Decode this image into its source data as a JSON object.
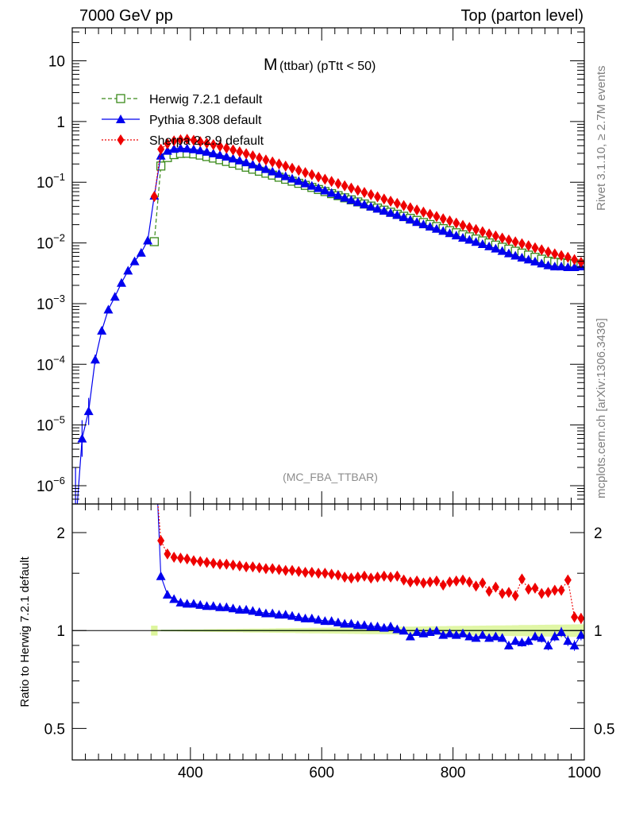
{
  "header": {
    "left": "7000 GeV pp",
    "right": "Top (parton level)"
  },
  "side_labels": {
    "top": "Rivet 3.1.10, ≥ 2.7M events",
    "bottom": "mcplots.cern.ch [arXiv:1306.3436]"
  },
  "chart_data": {
    "type": "line",
    "title": "M (ttbar) (pTtt < 50)",
    "title_main": "M",
    "title_sub": "(ttbar) (pTtt < 50)",
    "analysis_tag": "(MC_FBA_TTBAR)",
    "xlim": [
      220,
      1000
    ],
    "x_ticks": [
      400,
      600,
      800,
      1000
    ],
    "x_tick_labels": [
      "400",
      "600",
      "800",
      "1000"
    ],
    "main": {
      "yscale": "log",
      "ylim": [
        5e-07,
        35
      ],
      "y_ticks": [
        1e-06,
        1e-05,
        0.0001,
        0.001,
        0.01,
        0.1,
        1,
        10
      ],
      "y_tick_labels": [
        {
          "base": "10",
          "exp": "−6"
        },
        {
          "base": "10",
          "exp": "−5"
        },
        {
          "base": "10",
          "exp": "−4"
        },
        {
          "base": "10",
          "exp": "−3"
        },
        {
          "base": "10",
          "exp": "−2"
        },
        {
          "base": "10",
          "exp": "−1"
        },
        {
          "base": "1",
          "exp": ""
        },
        {
          "base": "10",
          "exp": ""
        }
      ]
    },
    "ratio": {
      "yscale": "log",
      "ylim": [
        0.4,
        2.45
      ],
      "y_ticks": [
        0.5,
        1,
        2
      ],
      "y_tick_labels": [
        "0.5",
        "1",
        "2"
      ],
      "ylabel": "Ratio to Herwig 7.2.1 default",
      "reference": 1
    },
    "legend": {
      "position": "top-left",
      "entries": [
        "Herwig 7.2.1 default",
        "Pythia 8.308 default",
        "Sherpa 2.2.9 default"
      ]
    },
    "series": [
      {
        "name": "Herwig 7.2.1 default",
        "color": "#3a8a1a",
        "marker": "open-square",
        "dash": "5,3",
        "x": [
          345,
          355,
          365,
          375,
          385,
          395,
          405,
          415,
          425,
          435,
          445,
          455,
          465,
          475,
          485,
          495,
          505,
          515,
          525,
          535,
          545,
          555,
          565,
          575,
          585,
          595,
          605,
          615,
          625,
          635,
          645,
          655,
          665,
          675,
          685,
          695,
          705,
          715,
          725,
          735,
          745,
          755,
          765,
          775,
          785,
          795,
          805,
          815,
          825,
          835,
          845,
          855,
          865,
          875,
          885,
          895,
          905,
          915,
          925,
          935,
          945,
          955,
          965,
          975,
          985,
          995
        ],
        "y": [
          0.0105,
          0.185,
          0.255,
          0.285,
          0.298,
          0.3,
          0.293,
          0.28,
          0.265,
          0.25,
          0.235,
          0.22,
          0.205,
          0.191,
          0.177,
          0.164,
          0.152,
          0.141,
          0.131,
          0.121,
          0.112,
          0.104,
          0.096,
          0.0888,
          0.0821,
          0.0759,
          0.0702,
          0.0649,
          0.06,
          0.0554,
          0.0512,
          0.0474,
          0.0438,
          0.0405,
          0.0375,
          0.0347,
          0.0321,
          0.0297,
          0.0275,
          0.0254,
          0.0235,
          0.0217,
          0.0201,
          0.0186,
          0.0172,
          0.0159,
          0.0147,
          0.0136,
          0.0126,
          0.0116,
          0.0108,
          0.01,
          0.0092,
          0.0085,
          0.0079,
          0.0073,
          0.0068,
          0.0063,
          0.0058,
          0.0054,
          0.005,
          0.0048,
          0.0047,
          0.0046,
          0.0045,
          0.0045
        ]
      },
      {
        "name": "Pythia 8.308 default",
        "color": "#0000ee",
        "marker": "filled-triangle",
        "dash": "",
        "x": [
          225,
          235,
          245,
          255,
          265,
          275,
          285,
          295,
          305,
          315,
          325,
          335,
          345,
          355,
          365,
          375,
          385,
          395,
          405,
          415,
          425,
          435,
          445,
          455,
          465,
          475,
          485,
          495,
          505,
          515,
          525,
          535,
          545,
          555,
          565,
          575,
          585,
          595,
          605,
          615,
          625,
          635,
          645,
          655,
          665,
          675,
          685,
          695,
          705,
          715,
          725,
          735,
          745,
          755,
          765,
          775,
          785,
          795,
          805,
          815,
          825,
          835,
          845,
          855,
          865,
          875,
          885,
          895,
          905,
          915,
          925,
          935,
          945,
          955,
          965,
          975,
          985,
          995
        ],
        "y": [
          2e-07,
          6e-06,
          1.7e-05,
          0.00012,
          0.00036,
          0.0008,
          0.0013,
          0.0022,
          0.0035,
          0.005,
          0.0069,
          0.011,
          0.06,
          0.275,
          0.33,
          0.355,
          0.365,
          0.36,
          0.35,
          0.335,
          0.318,
          0.3,
          0.282,
          0.264,
          0.246,
          0.229,
          0.213,
          0.197,
          0.18,
          0.165,
          0.151,
          0.138,
          0.126,
          0.115,
          0.105,
          0.096,
          0.0878,
          0.0803,
          0.0733,
          0.0669,
          0.061,
          0.0558,
          0.0512,
          0.047,
          0.0432,
          0.0397,
          0.0367,
          0.0339,
          0.0313,
          0.0289,
          0.0266,
          0.0242,
          0.0221,
          0.0203,
          0.0186,
          0.0171,
          0.0158,
          0.0145,
          0.0133,
          0.0122,
          0.0113,
          0.0104,
          0.00958,
          0.00883,
          0.0081,
          0.0074,
          0.00675,
          0.0062,
          0.00575,
          0.00535,
          0.00495,
          0.0046,
          0.0043,
          0.0041,
          0.0041,
          0.004,
          0.004,
          0.0041
        ]
      },
      {
        "name": "Sherpa 2.2.9 default",
        "color": "#ee0000",
        "marker": "filled-diamond",
        "dash": "2,2",
        "x": [
          345,
          355,
          365,
          375,
          385,
          395,
          405,
          415,
          425,
          435,
          445,
          455,
          465,
          475,
          485,
          495,
          505,
          515,
          525,
          535,
          545,
          555,
          565,
          575,
          585,
          595,
          605,
          615,
          625,
          635,
          645,
          655,
          665,
          675,
          685,
          695,
          705,
          715,
          725,
          735,
          745,
          755,
          765,
          775,
          785,
          795,
          805,
          815,
          825,
          835,
          845,
          855,
          865,
          875,
          885,
          895,
          905,
          915,
          925,
          935,
          945,
          955,
          965,
          975,
          985,
          995
        ],
        "y": [
          0.058,
          0.35,
          0.43,
          0.48,
          0.5,
          0.51,
          0.49,
          0.465,
          0.44,
          0.415,
          0.39,
          0.365,
          0.34,
          0.317,
          0.295,
          0.273,
          0.252,
          0.233,
          0.216,
          0.2,
          0.184,
          0.17,
          0.157,
          0.144,
          0.133,
          0.122,
          0.112,
          0.103,
          0.0948,
          0.0872,
          0.0802,
          0.0738,
          0.0679,
          0.0624,
          0.0574,
          0.0529,
          0.0487,
          0.0448,
          0.0412,
          0.038,
          0.0349,
          0.0321,
          0.0296,
          0.0272,
          0.025,
          0.0231,
          0.0212,
          0.0195,
          0.018,
          0.0166,
          0.0153,
          0.0141,
          0.013,
          0.012,
          0.0112,
          0.0104,
          0.0097,
          0.009,
          0.0083,
          0.0077,
          0.0071,
          0.0066,
          0.0062,
          0.0058,
          0.0053,
          0.0048
        ]
      }
    ],
    "ratio_series": [
      {
        "name": "Pythia 8.308 default",
        "x": [
          355,
          365,
          375,
          385,
          395,
          405,
          415,
          425,
          435,
          445,
          455,
          465,
          475,
          485,
          495,
          505,
          515,
          525,
          535,
          545,
          555,
          565,
          575,
          585,
          595,
          605,
          615,
          625,
          635,
          645,
          655,
          665,
          675,
          685,
          695,
          705,
          715,
          725,
          735,
          745,
          755,
          765,
          775,
          785,
          795,
          805,
          815,
          825,
          835,
          845,
          855,
          865,
          875,
          885,
          895,
          905,
          915,
          925,
          935,
          945,
          955,
          965,
          975,
          985,
          995
        ],
        "y": [
          1.47,
          1.29,
          1.25,
          1.22,
          1.21,
          1.21,
          1.2,
          1.19,
          1.19,
          1.18,
          1.18,
          1.17,
          1.16,
          1.16,
          1.15,
          1.14,
          1.13,
          1.13,
          1.12,
          1.12,
          1.11,
          1.1,
          1.09,
          1.09,
          1.08,
          1.07,
          1.07,
          1.06,
          1.05,
          1.05,
          1.04,
          1.04,
          1.03,
          1.03,
          1.02,
          1.03,
          1.01,
          1.0,
          0.96,
          0.99,
          0.98,
          0.99,
          1.0,
          0.97,
          0.98,
          0.97,
          0.98,
          0.96,
          0.95,
          0.97,
          0.95,
          0.96,
          0.95,
          0.9,
          0.93,
          0.92,
          0.93,
          0.96,
          0.95,
          0.9,
          0.96,
          0.99,
          0.93,
          0.9,
          0.97
        ]
      },
      {
        "name": "Sherpa 2.2.9 default",
        "x": [
          355,
          365,
          375,
          385,
          395,
          405,
          415,
          425,
          435,
          445,
          455,
          465,
          475,
          485,
          495,
          505,
          515,
          525,
          535,
          545,
          555,
          565,
          575,
          585,
          595,
          605,
          615,
          625,
          635,
          645,
          655,
          665,
          675,
          685,
          695,
          705,
          715,
          725,
          735,
          745,
          755,
          765,
          775,
          785,
          795,
          805,
          815,
          825,
          835,
          845,
          855,
          865,
          875,
          885,
          895,
          905,
          915,
          925,
          935,
          945,
          955,
          965,
          975,
          985,
          995
        ],
        "y": [
          1.89,
          1.72,
          1.68,
          1.67,
          1.66,
          1.64,
          1.63,
          1.62,
          1.61,
          1.6,
          1.6,
          1.59,
          1.58,
          1.57,
          1.57,
          1.56,
          1.55,
          1.55,
          1.54,
          1.53,
          1.53,
          1.52,
          1.51,
          1.51,
          1.5,
          1.5,
          1.49,
          1.48,
          1.46,
          1.45,
          1.46,
          1.47,
          1.45,
          1.46,
          1.47,
          1.46,
          1.47,
          1.43,
          1.41,
          1.42,
          1.4,
          1.41,
          1.42,
          1.38,
          1.41,
          1.42,
          1.43,
          1.41,
          1.37,
          1.4,
          1.32,
          1.36,
          1.3,
          1.31,
          1.28,
          1.44,
          1.34,
          1.35,
          1.3,
          1.31,
          1.33,
          1.33,
          1.43,
          1.1,
          1.09
        ]
      }
    ]
  }
}
